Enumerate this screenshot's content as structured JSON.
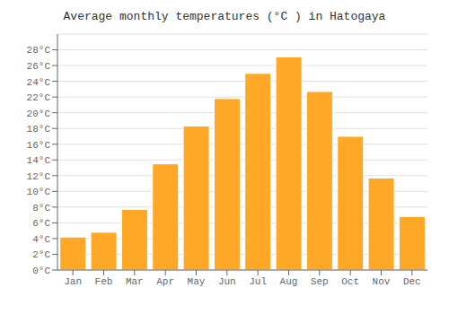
{
  "chart_data": {
    "type": "bar",
    "title": "Average monthly temperatures (°C ) in Hatogaya",
    "categories": [
      "Jan",
      "Feb",
      "Mar",
      "Apr",
      "May",
      "Jun",
      "Jul",
      "Aug",
      "Sep",
      "Oct",
      "Nov",
      "Dec"
    ],
    "values": [
      4.2,
      4.8,
      7.7,
      13.5,
      18.3,
      21.8,
      25.0,
      27.1,
      22.7,
      17.0,
      11.7,
      6.8
    ],
    "color": "#FFA726",
    "ylim": [
      0,
      30
    ],
    "yticks": [
      {
        "value": 0,
        "label": "0°C"
      },
      {
        "value": 2,
        "label": "2°C"
      },
      {
        "value": 4,
        "label": "4°C"
      },
      {
        "value": 6,
        "label": "6°C"
      },
      {
        "value": 8,
        "label": "8°C"
      },
      {
        "value": 10,
        "label": "10°C"
      },
      {
        "value": 12,
        "label": "12°C"
      },
      {
        "value": 14,
        "label": "14°C"
      },
      {
        "value": 16,
        "label": "16°C"
      },
      {
        "value": 18,
        "label": "18°C"
      },
      {
        "value": 20,
        "label": "20°C"
      },
      {
        "value": 22,
        "label": "22°C"
      },
      {
        "value": 24,
        "label": "24°C"
      },
      {
        "value": 26,
        "label": "26°C"
      },
      {
        "value": 28,
        "label": "28°C"
      }
    ],
    "grid": true
  }
}
